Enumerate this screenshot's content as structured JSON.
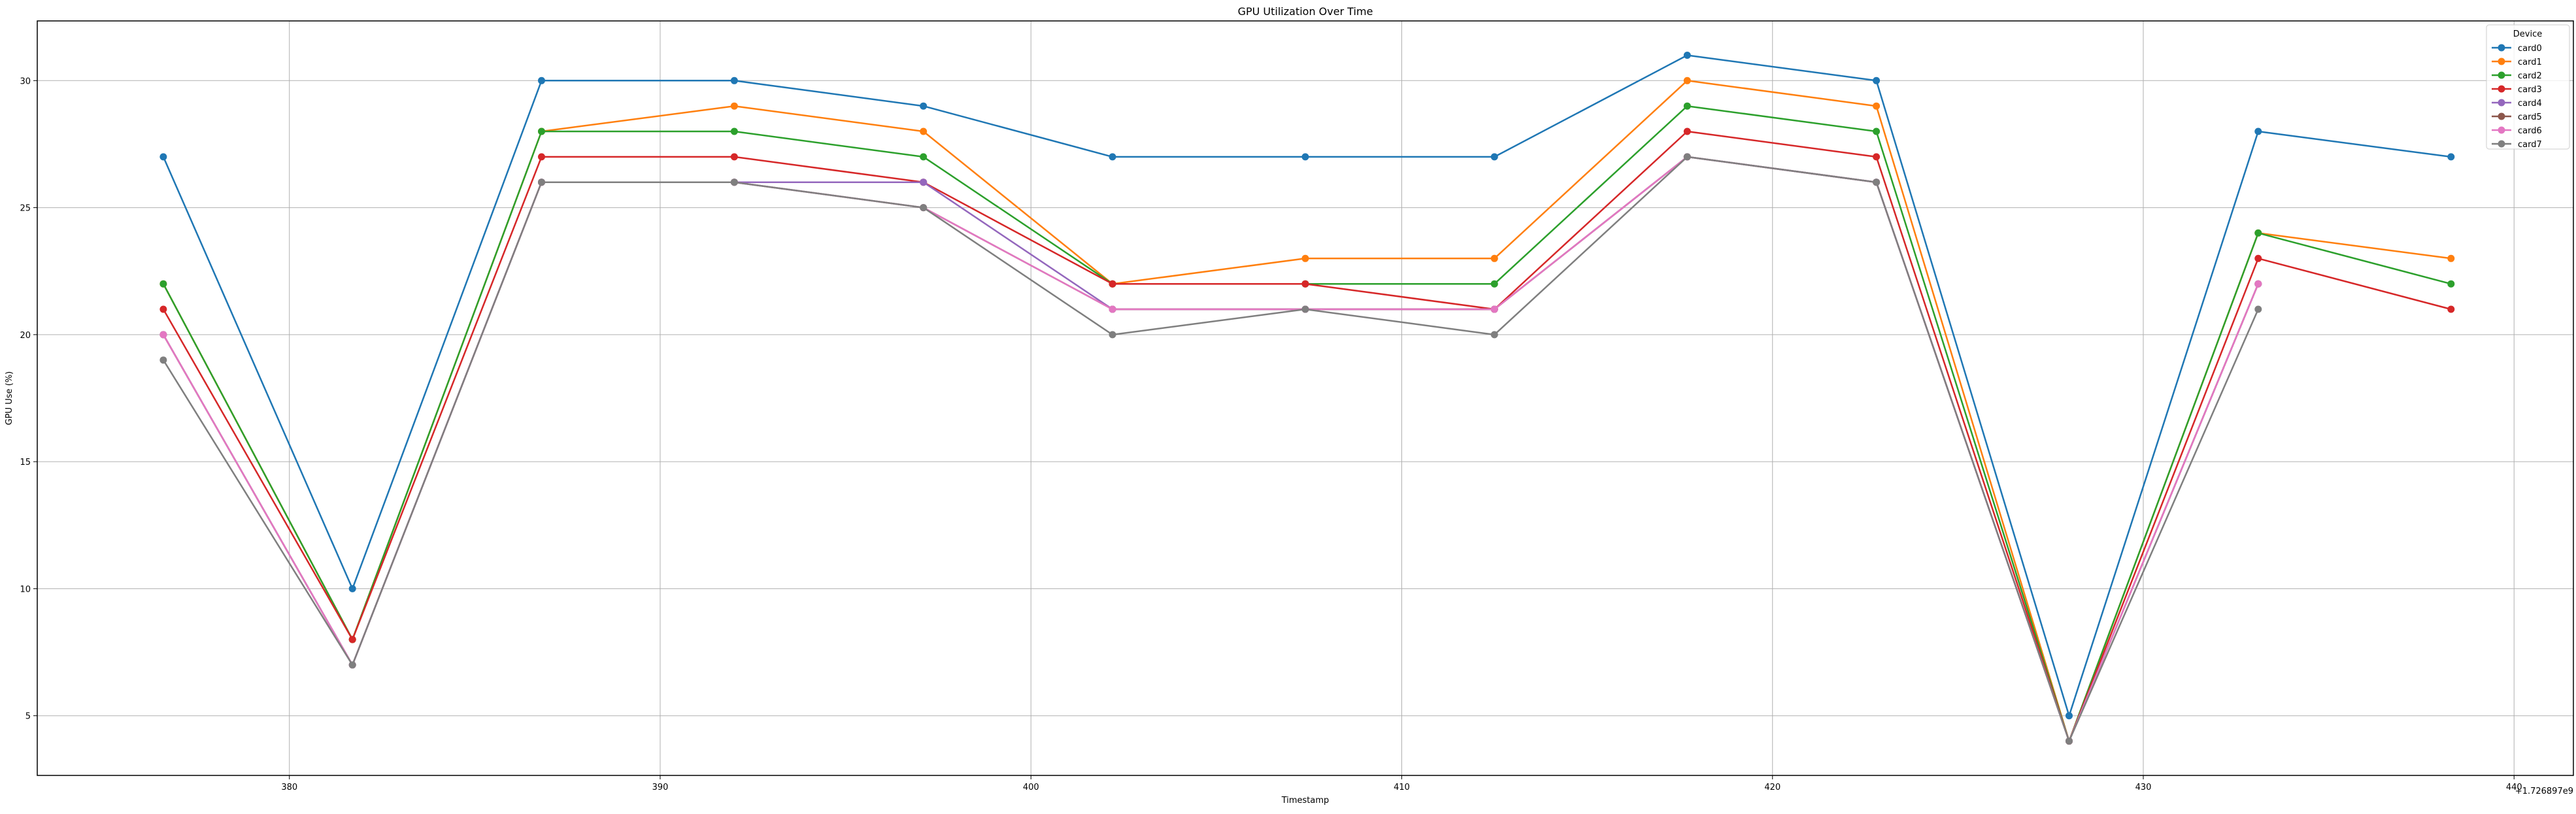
{
  "chart_data": {
    "type": "line",
    "title": "GPU Utilization Over Time",
    "xlabel": "Timestamp",
    "ylabel": "GPU Use (%)",
    "x_offset_label": "+1.726897e9",
    "xlim": [
      373.2,
      441.6
    ],
    "ylim": [
      2.65,
      32.35
    ],
    "x_ticks": [
      380,
      390,
      400,
      410,
      420,
      430,
      440
    ],
    "y_ticks": [
      5,
      10,
      15,
      20,
      25,
      30
    ],
    "grid": true,
    "legend": {
      "title": "Device",
      "position": "top-right"
    },
    "x": [
      376.6,
      381.7,
      386.8,
      392.0,
      397.1,
      402.2,
      407.4,
      412.5,
      417.7,
      422.8,
      428.0,
      433.1,
      438.3
    ],
    "series": [
      {
        "name": "card0",
        "color": "#1f77b4",
        "values": [
          27,
          10,
          30,
          30,
          29,
          27,
          27,
          27,
          31,
          30,
          5,
          28,
          27
        ]
      },
      {
        "name": "card1",
        "color": "#ff7f0e",
        "values": [
          22,
          8,
          28,
          29,
          28,
          22,
          23,
          23,
          30,
          29,
          4,
          24,
          23
        ]
      },
      {
        "name": "card2",
        "color": "#2ca02c",
        "values": [
          22,
          8,
          28,
          28,
          27,
          22,
          22,
          22,
          29,
          28,
          4,
          24,
          22
        ]
      },
      {
        "name": "card3",
        "color": "#d62728",
        "values": [
          21,
          8,
          27,
          27,
          26,
          22,
          22,
          21,
          28,
          27,
          4,
          23,
          21
        ]
      },
      {
        "name": "card4",
        "color": "#9467bd",
        "values": [
          20,
          7,
          26,
          26,
          26,
          21,
          21,
          21,
          27,
          26,
          4,
          22,
          null
        ]
      },
      {
        "name": "card5",
        "color": "#8c564b",
        "values": [
          20,
          7,
          26,
          26,
          25,
          21,
          21,
          21,
          27,
          26,
          4,
          22,
          null
        ]
      },
      {
        "name": "card6",
        "color": "#e377c2",
        "values": [
          20,
          7,
          26,
          26,
          25,
          21,
          21,
          21,
          27,
          26,
          4,
          22,
          null
        ]
      },
      {
        "name": "card7",
        "color": "#7f7f7f",
        "values": [
          19,
          7,
          26,
          26,
          25,
          20,
          21,
          20,
          27,
          26,
          4,
          21,
          null
        ]
      }
    ]
  }
}
